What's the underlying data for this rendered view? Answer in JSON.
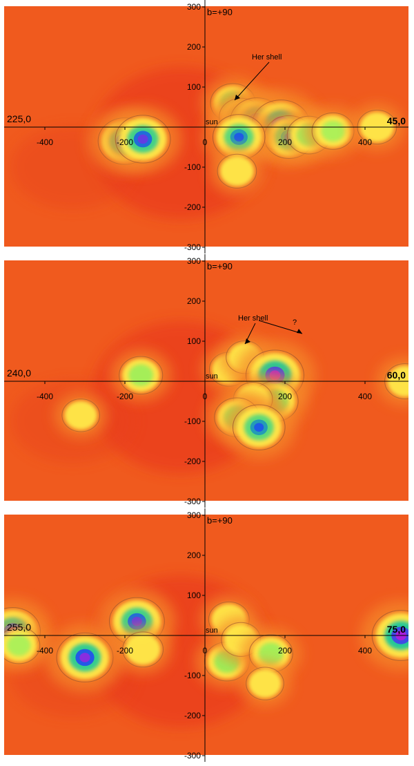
{
  "chart_data": [
    {
      "type": "heatmap",
      "ylim": [
        -300,
        300
      ],
      "xlim": [
        -500,
        500
      ],
      "y_ticks": [
        "300",
        "200",
        "100",
        "0",
        "-100",
        "-200",
        "-300"
      ],
      "x_ticks": [
        "-400",
        "-200",
        "0",
        "200",
        "400"
      ],
      "top_label": "b=+90",
      "origin_label": "sun",
      "left_direction_label": "225,0",
      "right_direction_label": "45,0",
      "annotations": [
        "Her shell"
      ],
      "blobs": [
        {
          "x": 70,
          "y": 60,
          "intensity": 0.55
        },
        {
          "x": 90,
          "y": 25,
          "intensity": 0.5
        },
        {
          "x": 130,
          "y": 15,
          "intensity": 0.85
        },
        {
          "x": 190,
          "y": 5,
          "intensity": 1.0
        },
        {
          "x": 210,
          "y": -25,
          "intensity": 0.7
        },
        {
          "x": 85,
          "y": -25,
          "intensity": 0.8
        },
        {
          "x": 260,
          "y": -20,
          "intensity": 0.5
        },
        {
          "x": 320,
          "y": -10,
          "intensity": 0.45
        },
        {
          "x": 430,
          "y": 0,
          "intensity": 0.35
        },
        {
          "x": 80,
          "y": -110,
          "intensity": 0.35
        },
        {
          "x": -200,
          "y": -35,
          "intensity": 0.85
        },
        {
          "x": -155,
          "y": -30,
          "intensity": 0.9
        }
      ]
    },
    {
      "type": "heatmap",
      "ylim": [
        -300,
        300
      ],
      "xlim": [
        -500,
        500
      ],
      "y_ticks": [
        "300",
        "200",
        "100",
        "0",
        "-100",
        "-200",
        "-300"
      ],
      "x_ticks": [
        "-400",
        "-200",
        "0",
        "200",
        "400"
      ],
      "top_label": "b=+90",
      "origin_label": "sun",
      "left_direction_label": "240,0",
      "right_direction_label": "60,0",
      "annotations": [
        "Her shell",
        "?"
      ],
      "blobs": [
        {
          "x": 60,
          "y": 30,
          "intensity": 0.35
        },
        {
          "x": 100,
          "y": 60,
          "intensity": 0.3
        },
        {
          "x": 175,
          "y": 15,
          "intensity": 1.0
        },
        {
          "x": 175,
          "y": -50,
          "intensity": 0.6
        },
        {
          "x": 120,
          "y": -45,
          "intensity": 0.35
        },
        {
          "x": 80,
          "y": -90,
          "intensity": 0.55
        },
        {
          "x": 135,
          "y": -115,
          "intensity": 0.8
        },
        {
          "x": 500,
          "y": 0,
          "intensity": 0.4
        },
        {
          "x": -160,
          "y": 15,
          "intensity": 0.5
        },
        {
          "x": -310,
          "y": -85,
          "intensity": 0.3
        }
      ]
    },
    {
      "type": "heatmap",
      "ylim": [
        -300,
        300
      ],
      "xlim": [
        -500,
        500
      ],
      "y_ticks": [
        "300",
        "200",
        "100",
        "0",
        "-100",
        "-200",
        "-300"
      ],
      "x_ticks": [
        "-400",
        "-200",
        "0",
        "200",
        "400"
      ],
      "top_label": "b=+90",
      "origin_label": "sun",
      "left_direction_label": "255,0",
      "right_direction_label": "75,0",
      "annotations": [],
      "blobs": [
        {
          "x": -480,
          "y": 10,
          "intensity": 0.9
        },
        {
          "x": -465,
          "y": -25,
          "intensity": 0.45
        },
        {
          "x": -300,
          "y": -55,
          "intensity": 0.95
        },
        {
          "x": -170,
          "y": 35,
          "intensity": 0.9
        },
        {
          "x": -155,
          "y": -35,
          "intensity": 0.4
        },
        {
          "x": 60,
          "y": 40,
          "intensity": 0.4
        },
        {
          "x": 55,
          "y": -65,
          "intensity": 0.55
        },
        {
          "x": 90,
          "y": -10,
          "intensity": 0.35
        },
        {
          "x": 165,
          "y": -45,
          "intensity": 0.5
        },
        {
          "x": 150,
          "y": -120,
          "intensity": 0.3
        },
        {
          "x": 490,
          "y": 0,
          "intensity": 1.0
        }
      ]
    }
  ],
  "colors": {
    "background": "#f05a1e",
    "axis": "#000000",
    "contour": "#a0522d"
  }
}
